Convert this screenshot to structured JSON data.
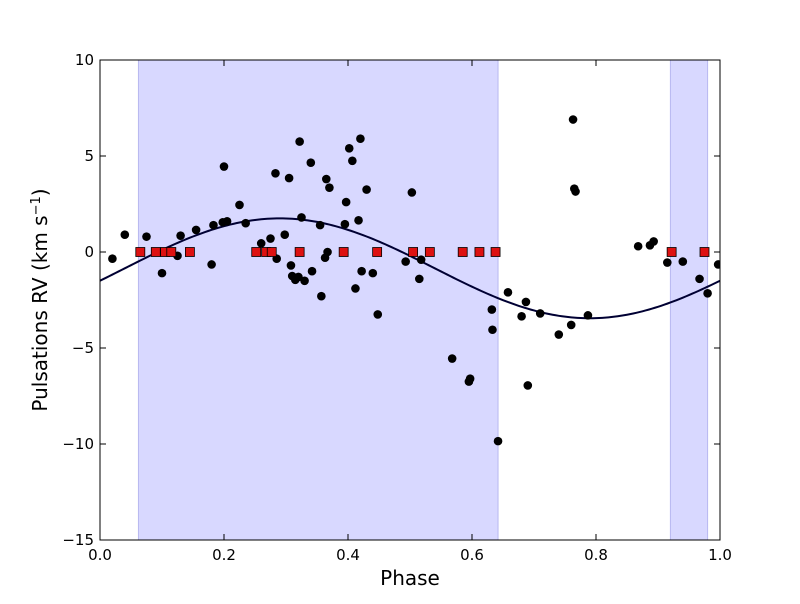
{
  "colors": {
    "shade": "#d8d8ff",
    "shade_edge": "#b8b8f0",
    "points": "#000000",
    "markers": "#dd1111",
    "curve": "#000033",
    "axes": "#000000"
  },
  "chart_data": {
    "type": "scatter",
    "title": "",
    "xlabel": "Phase",
    "ylabel_main": "Pulsations RV (km s",
    "ylabel_sup": "−1",
    "ylabel_close": ")",
    "xlim": [
      0.0,
      1.0
    ],
    "ylim": [
      -15,
      10
    ],
    "xticks": [
      0.0,
      0.2,
      0.4,
      0.6,
      0.8,
      1.0
    ],
    "xtick_labels": [
      "0.0",
      "0.2",
      "0.4",
      "0.6",
      "0.8",
      "1.0"
    ],
    "yticks": [
      10,
      5,
      0,
      -5,
      -10,
      -15
    ],
    "ytick_labels": [
      "10",
      "5",
      "0",
      "−5",
      "−10",
      "−15"
    ],
    "grid": false,
    "shaded_regions": [
      [
        0.062,
        0.642
      ],
      [
        0.92,
        0.98
      ]
    ],
    "series": [
      {
        "kind": "points",
        "x": [
          0.02,
          0.04,
          0.075,
          0.1,
          0.125,
          0.13,
          0.155,
          0.18,
          0.183,
          0.198,
          0.2,
          0.205,
          0.225,
          0.235,
          0.26,
          0.275,
          0.283,
          0.285,
          0.298,
          0.305,
          0.308,
          0.31,
          0.315,
          0.32,
          0.322,
          0.325,
          0.33,
          0.34,
          0.342,
          0.355,
          0.357,
          0.363,
          0.365,
          0.367,
          0.37,
          0.395,
          0.397,
          0.402,
          0.407,
          0.412,
          0.417,
          0.42,
          0.422,
          0.43,
          0.44,
          0.448,
          0.493,
          0.503,
          0.515,
          0.518,
          0.568,
          0.595,
          0.597,
          0.632,
          0.633,
          0.642,
          0.658,
          0.68,
          0.687,
          0.69,
          0.71,
          0.74,
          0.76,
          0.763,
          0.765,
          0.767,
          0.787,
          0.868,
          0.887,
          0.893,
          0.915,
          0.94,
          0.967,
          0.98,
          0.997
        ],
        "y": [
          -0.35,
          0.9,
          0.8,
          -1.1,
          -0.2,
          0.85,
          1.15,
          -0.65,
          1.4,
          1.55,
          4.45,
          1.6,
          2.45,
          1.5,
          0.45,
          0.7,
          4.1,
          -0.35,
          0.9,
          3.85,
          -0.7,
          -1.25,
          -1.45,
          -1.3,
          5.75,
          1.8,
          -1.5,
          4.65,
          -1.0,
          1.4,
          -2.3,
          -0.3,
          3.8,
          0.0,
          3.35,
          1.45,
          2.6,
          5.4,
          4.75,
          -1.9,
          1.65,
          5.9,
          -1.0,
          3.25,
          -1.1,
          -3.25,
          -0.5,
          3.1,
          -1.4,
          -0.4,
          -5.55,
          -6.75,
          -6.6,
          -3.0,
          -4.05,
          -9.85,
          -2.1,
          -3.35,
          -2.6,
          -6.95,
          -3.2,
          -4.3,
          -3.8,
          6.9,
          3.3,
          3.15,
          -3.3,
          0.3,
          0.35,
          0.55,
          -0.55,
          -0.5,
          -1.4,
          -2.15,
          -0.65
        ]
      },
      {
        "kind": "markers",
        "x": [
          0.065,
          0.09,
          0.105,
          0.115,
          0.145,
          0.252,
          0.268,
          0.277,
          0.322,
          0.393,
          0.447,
          0.505,
          0.532,
          0.585,
          0.612,
          0.638,
          0.922,
          0.975
        ],
        "y": [
          0,
          0,
          0,
          0,
          0,
          0,
          0,
          0,
          0,
          0,
          0,
          0,
          0,
          0,
          0,
          0,
          0,
          0
        ]
      },
      {
        "kind": "curve",
        "amplitude": 2.6,
        "offset": -0.85,
        "phase_shift": 0.04,
        "x_start": 0.0,
        "x_end": 1.0
      }
    ]
  }
}
